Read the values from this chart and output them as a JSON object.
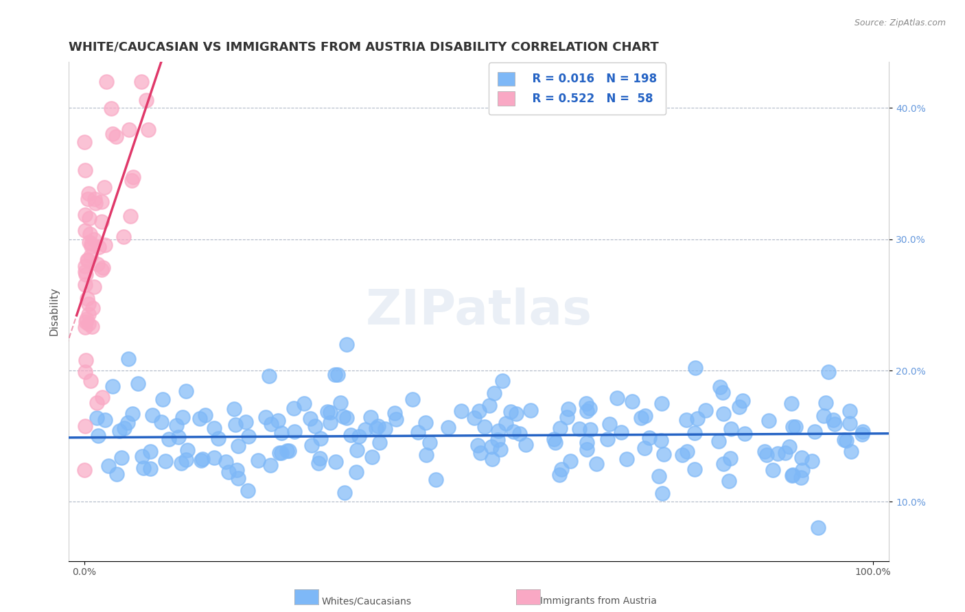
{
  "title": "WHITE/CAUCASIAN VS IMMIGRANTS FROM AUSTRIA DISABILITY CORRELATION CHART",
  "source": "Source: ZipAtlas.com",
  "ylabel": "Disability",
  "xlabel_ticks": [
    "0.0%",
    "100.0%"
  ],
  "ylabel_ticks": [
    "10.0%",
    "20.0%",
    "30.0%",
    "40.0%"
  ],
  "xlim": [
    -0.02,
    1.02
  ],
  "ylim": [
    0.055,
    0.435
  ],
  "blue_R": 0.016,
  "blue_N": 198,
  "pink_R": 0.522,
  "pink_N": 58,
  "blue_color": "#7EB8F7",
  "blue_line_color": "#2563C4",
  "pink_color": "#F9A8C4",
  "pink_line_color": "#E0396A",
  "blue_reg_intercept": 0.149,
  "blue_reg_slope": 0.003,
  "pink_reg_intercept": 0.26,
  "pink_reg_slope": 1.8,
  "watermark": "ZIPatlas",
  "legend_label_blue": "Whites/Caucasians",
  "legend_label_pink": "Immigrants from Austria",
  "title_fontsize": 13,
  "axis_label_fontsize": 10,
  "tick_fontsize": 10
}
